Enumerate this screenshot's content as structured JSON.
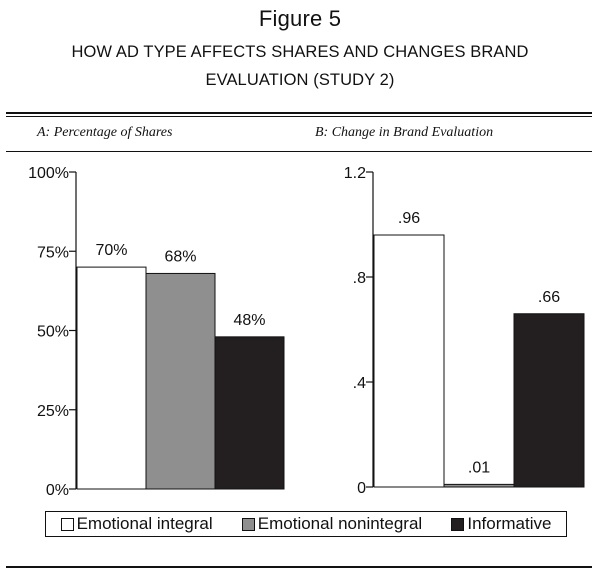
{
  "figure": {
    "title": "Figure 5",
    "subtitle": "HOW AD TYPE AFFECTS SHARES AND CHANGES BRAND EVALUATION (STUDY 2)"
  },
  "legend": [
    {
      "label": "Emotional integral",
      "color": "#ffffff"
    },
    {
      "label": "Emotional nonintegral",
      "color": "#8f8f8f"
    },
    {
      "label": "Informative",
      "color": "#231f20"
    }
  ],
  "chart_data": [
    {
      "type": "bar",
      "title": "A: Percentage of Shares",
      "categories": [
        "Emotional integral",
        "Emotional nonintegral",
        "Informative"
      ],
      "values": [
        70,
        68,
        48
      ],
      "data_labels": [
        "70%",
        "68%",
        "48%"
      ],
      "ylim": [
        0,
        100
      ],
      "yticks": [
        0,
        25,
        50,
        75,
        100
      ],
      "ytick_labels": [
        "0%",
        "25%",
        "50%",
        "75%",
        "100%"
      ],
      "colors": [
        "#ffffff",
        "#8f8f8f",
        "#231f20"
      ],
      "grid": false
    },
    {
      "type": "bar",
      "title": "B: Change in Brand Evaluation",
      "categories": [
        "Emotional integral",
        "Emotional nonintegral",
        "Informative"
      ],
      "values": [
        0.96,
        0.01,
        0.66
      ],
      "data_labels": [
        ".96",
        ".01",
        ".66"
      ],
      "ylim": [
        0,
        1.2
      ],
      "yticks": [
        0,
        0.4,
        0.8,
        1.2
      ],
      "ytick_labels": [
        "0",
        ".4",
        ".8",
        "1.2"
      ],
      "colors": [
        "#ffffff",
        "#8f8f8f",
        "#231f20"
      ],
      "grid": false
    }
  ]
}
